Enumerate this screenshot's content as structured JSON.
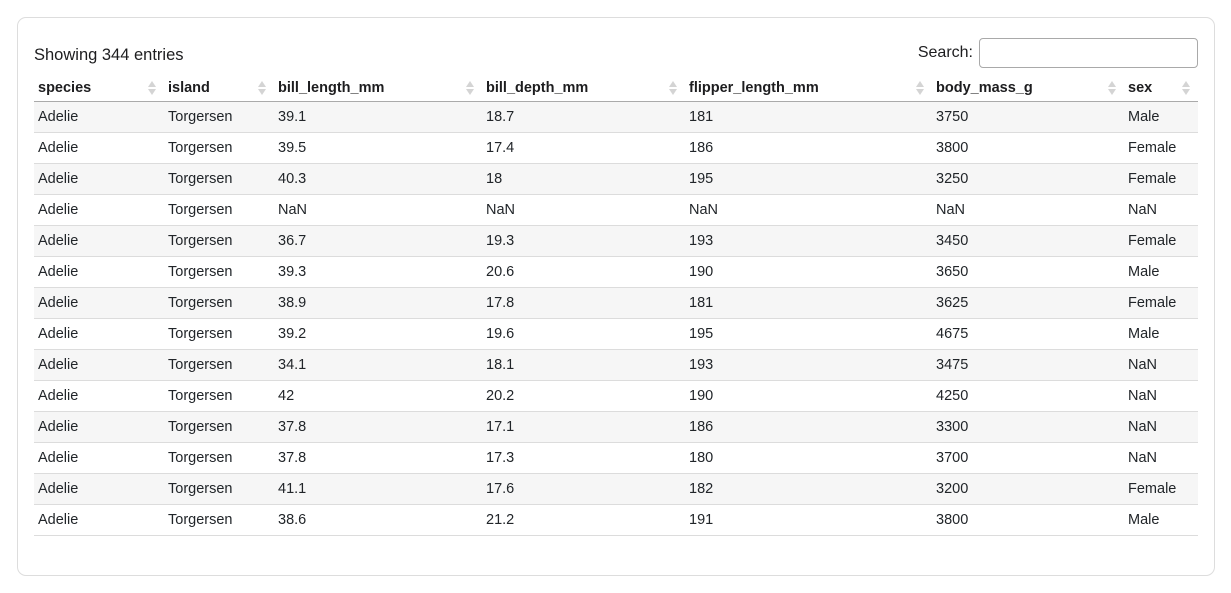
{
  "info": {
    "showing_text": "Showing 344 entries"
  },
  "search": {
    "label": "Search:",
    "value": "",
    "placeholder": ""
  },
  "table": {
    "columns": [
      "species",
      "island",
      "bill_length_mm",
      "bill_depth_mm",
      "flipper_length_mm",
      "body_mass_g",
      "sex"
    ],
    "rows": [
      [
        "Adelie",
        "Torgersen",
        "39.1",
        "18.7",
        "181",
        "3750",
        "Male"
      ],
      [
        "Adelie",
        "Torgersen",
        "39.5",
        "17.4",
        "186",
        "3800",
        "Female"
      ],
      [
        "Adelie",
        "Torgersen",
        "40.3",
        "18",
        "195",
        "3250",
        "Female"
      ],
      [
        "Adelie",
        "Torgersen",
        "NaN",
        "NaN",
        "NaN",
        "NaN",
        "NaN"
      ],
      [
        "Adelie",
        "Torgersen",
        "36.7",
        "19.3",
        "193",
        "3450",
        "Female"
      ],
      [
        "Adelie",
        "Torgersen",
        "39.3",
        "20.6",
        "190",
        "3650",
        "Male"
      ],
      [
        "Adelie",
        "Torgersen",
        "38.9",
        "17.8",
        "181",
        "3625",
        "Female"
      ],
      [
        "Adelie",
        "Torgersen",
        "39.2",
        "19.6",
        "195",
        "4675",
        "Male"
      ],
      [
        "Adelie",
        "Torgersen",
        "34.1",
        "18.1",
        "193",
        "3475",
        "NaN"
      ],
      [
        "Adelie",
        "Torgersen",
        "42",
        "20.2",
        "190",
        "4250",
        "NaN"
      ],
      [
        "Adelie",
        "Torgersen",
        "37.8",
        "17.1",
        "186",
        "3300",
        "NaN"
      ],
      [
        "Adelie",
        "Torgersen",
        "37.8",
        "17.3",
        "180",
        "3700",
        "NaN"
      ],
      [
        "Adelie",
        "Torgersen",
        "41.1",
        "17.6",
        "182",
        "3200",
        "Female"
      ],
      [
        "Adelie",
        "Torgersen",
        "38.6",
        "21.2",
        "191",
        "3800",
        "Male"
      ]
    ]
  },
  "colors": {
    "stripe": "#f6f6f6",
    "row_border": "#dcdcdc",
    "header_border": "#aaaaaa",
    "card_border": "#dddddd",
    "sort_icon": "#d4d4d4",
    "text": "#212529"
  }
}
